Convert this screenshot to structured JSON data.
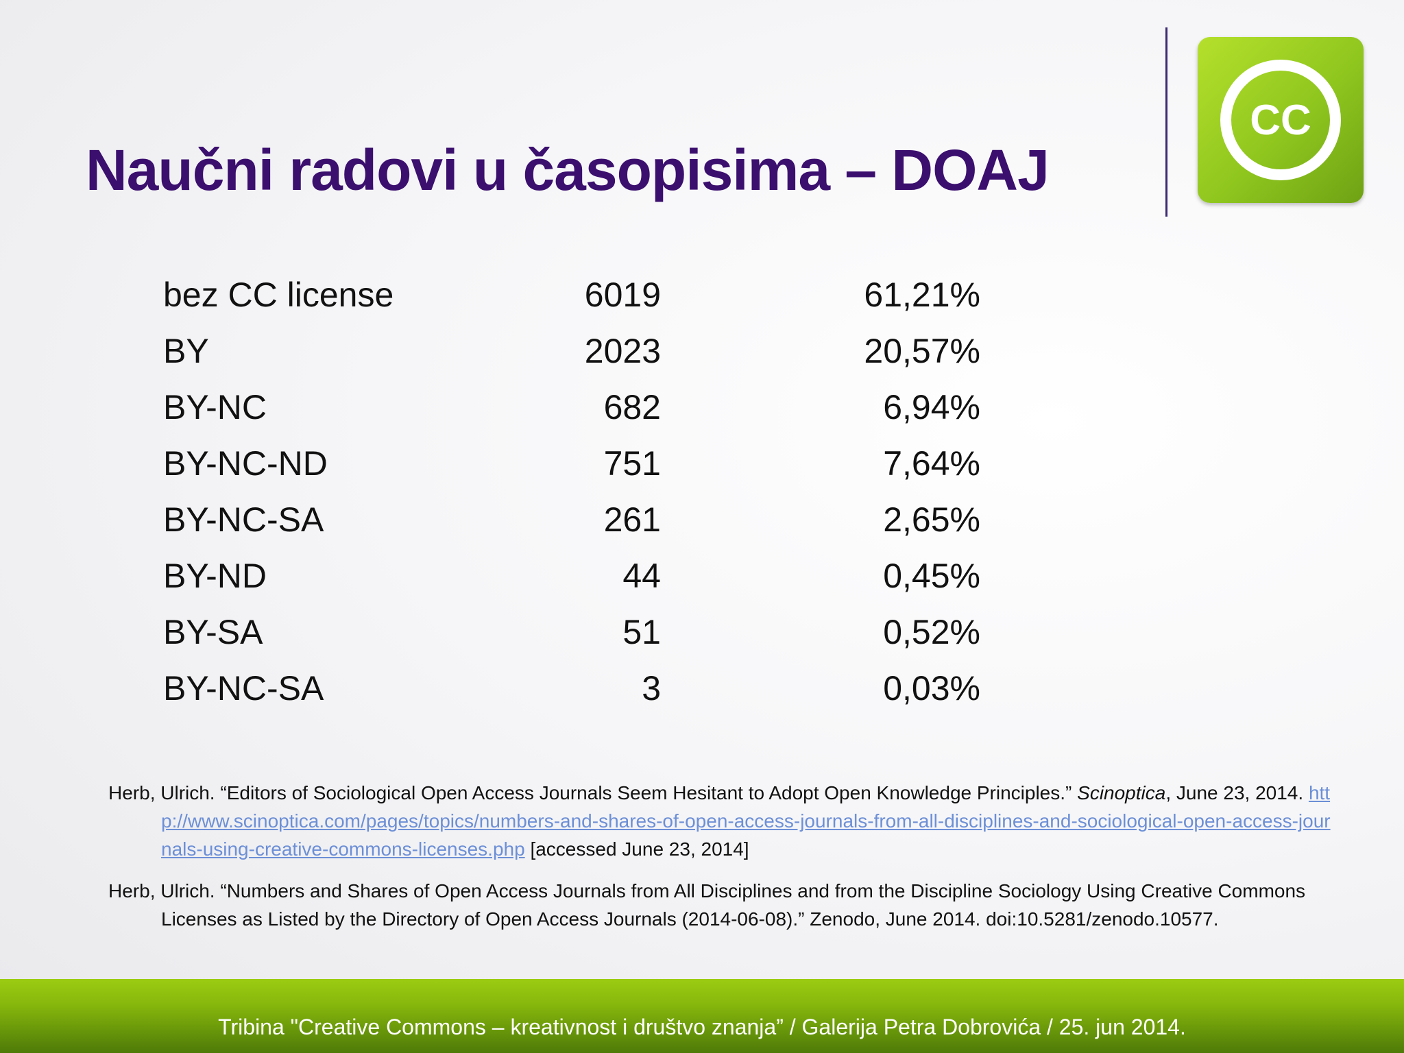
{
  "title": "Naučni radovi u časopisima – DOAJ",
  "logo": {
    "icon": "cc-icon",
    "text": "CC",
    "color": "#8fc61e"
  },
  "table": {
    "rows": [
      {
        "label": "bez CC license",
        "count": "6019",
        "percent": "61,21%"
      },
      {
        "label": "BY",
        "count": "2023",
        "percent": "20,57%"
      },
      {
        "label": "BY-NC",
        "count": "682",
        "percent": "6,94%"
      },
      {
        "label": "BY-NC-ND",
        "count": "751",
        "percent": "7,64%"
      },
      {
        "label": "BY-NC-SA",
        "count": "261",
        "percent": "2,65%"
      },
      {
        "label": "BY-ND",
        "count": "44",
        "percent": "0,45%"
      },
      {
        "label": "BY-SA",
        "count": "51",
        "percent": "0,52%"
      },
      {
        "label": "BY-NC-SA",
        "count": "3",
        "percent": "0,03%"
      }
    ]
  },
  "references": [
    {
      "before": "Herb, Ulrich. “Editors of Sociological Open Access Journals Seem Hesitant to Adopt Open Knowledge Principles.” ",
      "journal": "Scinoptica",
      "after_journal": ", June 23, 2014. ",
      "link": "http://www.scinoptica.com/pages/topics/numbers-and-shares-of-open-access-journals-from-all-disciplines-and-sociological-open-access-journals-using-creative-commons-licenses.php",
      "accessed": " [accessed June 23, 2014]"
    },
    {
      "text": "Herb, Ulrich. “Numbers and Shares of Open Access Journals from All Disciplines and from the Discipline Sociology Using Creative Commons Licenses as Listed by the Directory of Open Access Journals (2014-06-08).” Zenodo, June 2014. doi:10.5281/zenodo.10577."
    }
  ],
  "footer": "Tribina \"Creative Commons – kreativnost i društvo znanja”  / Galerija Petra Dobrovića / 25. jun 2014."
}
